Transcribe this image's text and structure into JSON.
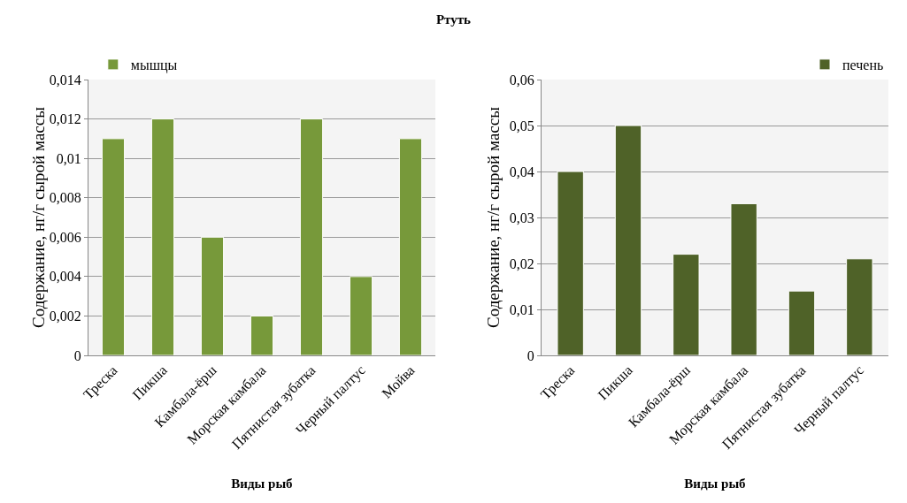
{
  "chart_data": [
    {
      "type": "bar",
      "title": "Ртуть",
      "xlabel": "Виды рыб",
      "ylabel": "Содержание, нг/г сырой массы",
      "categories": [
        "Треска",
        "Пикша",
        "Камбала-ёрш",
        "Морская камбала",
        "Пятнистая зубатка",
        "Черный палтус",
        "Мойва"
      ],
      "series": [
        {
          "name": "мышцы",
          "color": "#77993a",
          "values": [
            0.011,
            0.012,
            0.006,
            0.002,
            0.012,
            0.004,
            0.011
          ]
        }
      ],
      "ylim": [
        0,
        0.014
      ],
      "yticks": [
        0,
        {
          "value": 0.002,
          "label": "0,002"
        },
        {
          "value": 0.004,
          "label": "0,004"
        },
        {
          "value": 0.006,
          "label": "0,006"
        },
        {
          "value": 0.008,
          "label": "0,008"
        },
        {
          "value": 0.01,
          "label": "0,01"
        },
        {
          "value": 0.012,
          "label": "0,012"
        },
        {
          "value": 0.014,
          "label": "0,014"
        }
      ],
      "grid": "y",
      "legend": "top left"
    },
    {
      "type": "bar",
      "xlabel": "Виды рыб",
      "ylabel": "Содержание, нг/г сырой массы",
      "categories": [
        "Треска",
        "Пикша",
        "Камбала-ёрш",
        "Морская камбала",
        "Пятнистая зубатка",
        "Черный палтус"
      ],
      "series": [
        {
          "name": "печень",
          "color": "#4f6228",
          "values": [
            0.04,
            0.05,
            0.022,
            0.033,
            0.014,
            0.021
          ]
        }
      ],
      "ylim": [
        0,
        0.06
      ],
      "yticks": [
        0,
        {
          "value": 0.01,
          "label": "0,01"
        },
        {
          "value": 0.02,
          "label": "0,02"
        },
        {
          "value": 0.03,
          "label": "0,03"
        },
        {
          "value": 0.04,
          "label": "0,04"
        },
        {
          "value": 0.05,
          "label": "0,05"
        },
        {
          "value": 0.06,
          "label": "0,06"
        }
      ],
      "grid": "y",
      "legend": "top right"
    }
  ]
}
